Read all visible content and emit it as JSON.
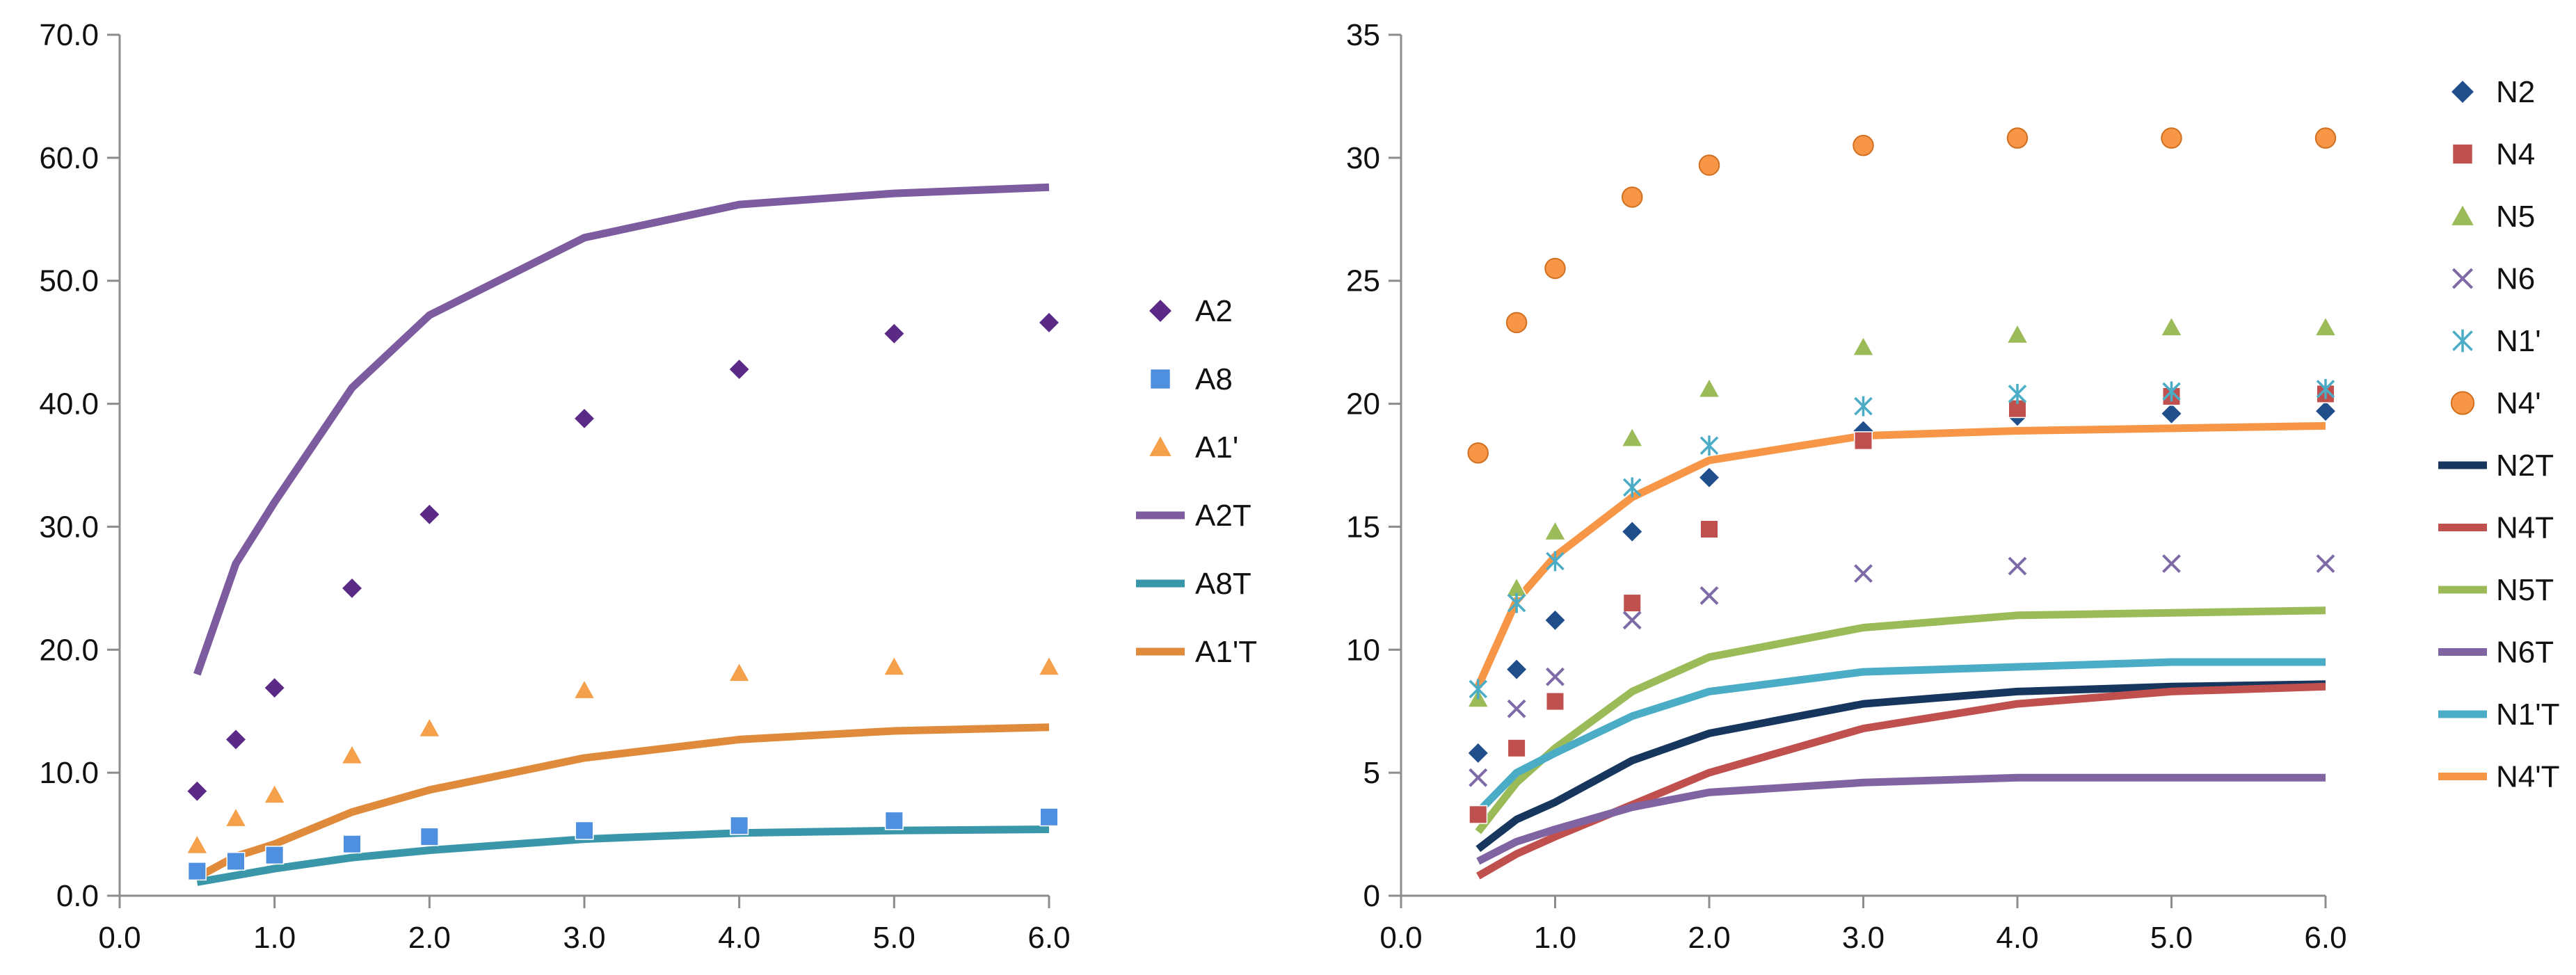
{
  "chart_data": [
    {
      "type": "scatter",
      "xlim": [
        0,
        6
      ],
      "ylim": [
        0,
        70
      ],
      "x_ticks": [
        "0.0",
        "1.0",
        "2.0",
        "3.0",
        "4.0",
        "5.0",
        "6.0"
      ],
      "y_ticks": [
        "0.0",
        "10.0",
        "20.0",
        "30.0",
        "40.0",
        "50.0",
        "60.0",
        "70.0"
      ],
      "grid": false,
      "legend_position": "right",
      "series": [
        {
          "name": "A2",
          "kind": "marker",
          "marker": "diamond",
          "color": "#5b2a86",
          "x": [
            0.5,
            0.75,
            1.0,
            1.5,
            2.0,
            3.0,
            4.0,
            5.0,
            6.0
          ],
          "y": [
            8.5,
            12.7,
            16.9,
            25.0,
            31.0,
            38.8,
            42.8,
            45.7,
            46.6
          ]
        },
        {
          "name": "A8",
          "kind": "marker",
          "marker": "square",
          "color": "#4f8fe0",
          "x": [
            0.5,
            0.75,
            1.0,
            1.5,
            2.0,
            3.0,
            4.0,
            5.0,
            6.0
          ],
          "y": [
            2.0,
            2.8,
            3.3,
            4.2,
            4.8,
            5.3,
            5.7,
            6.1,
            6.4
          ]
        },
        {
          "name": "A1'",
          "kind": "marker",
          "marker": "triangle",
          "color": "#f5a04a",
          "x": [
            0.5,
            0.75,
            1.0,
            1.5,
            2.0,
            3.0,
            4.0,
            5.0,
            6.0
          ],
          "y": [
            4.1,
            6.3,
            8.2,
            11.4,
            13.6,
            16.7,
            18.1,
            18.6,
            18.6
          ]
        },
        {
          "name": "A2T",
          "kind": "line",
          "color": "#7c5b9e",
          "x": [
            0.5,
            0.75,
            1.0,
            1.5,
            2.0,
            3.0,
            4.0,
            5.0,
            6.0
          ],
          "y": [
            18.0,
            27.0,
            32.0,
            41.3,
            47.2,
            53.5,
            56.2,
            57.1,
            57.6
          ]
        },
        {
          "name": "A8T",
          "kind": "line",
          "color": "#3a97a9",
          "x": [
            0.5,
            1.0,
            1.5,
            2.0,
            3.0,
            4.0,
            5.0,
            6.0
          ],
          "y": [
            1.1,
            2.2,
            3.1,
            3.7,
            4.6,
            5.1,
            5.3,
            5.4
          ]
        },
        {
          "name": "A1'T",
          "kind": "line",
          "color": "#e08a3c",
          "x": [
            0.5,
            0.75,
            1.0,
            1.5,
            2.0,
            3.0,
            4.0,
            5.0,
            6.0
          ],
          "y": [
            1.5,
            3.2,
            4.2,
            6.8,
            8.6,
            11.2,
            12.7,
            13.4,
            13.7
          ]
        }
      ]
    },
    {
      "type": "scatter",
      "xlim": [
        0,
        6
      ],
      "ylim": [
        0,
        35
      ],
      "x_ticks": [
        "0.0",
        "1.0",
        "2.0",
        "3.0",
        "4.0",
        "5.0",
        "6.0"
      ],
      "y_ticks": [
        "0",
        "5",
        "10",
        "15",
        "20",
        "25",
        "30",
        "35"
      ],
      "grid": false,
      "legend_position": "right",
      "series": [
        {
          "name": "N2",
          "kind": "marker",
          "marker": "diamond",
          "color": "#1f4e8a",
          "x": [
            0.5,
            0.75,
            1.0,
            1.5,
            2.0,
            3.0,
            4.0,
            5.0,
            6.0
          ],
          "y": [
            5.8,
            9.2,
            11.2,
            14.8,
            17.0,
            18.9,
            19.5,
            19.6,
            19.7
          ]
        },
        {
          "name": "N4",
          "kind": "marker",
          "marker": "square",
          "color": "#c0504d",
          "x": [
            0.5,
            0.75,
            1.0,
            1.5,
            2.0,
            3.0,
            4.0,
            5.0,
            6.0
          ],
          "y": [
            3.3,
            6.0,
            7.9,
            11.9,
            14.9,
            18.5,
            19.8,
            20.3,
            20.4
          ]
        },
        {
          "name": "N5",
          "kind": "marker",
          "marker": "triangle",
          "color": "#9bbb59",
          "x": [
            0.5,
            0.75,
            1.0,
            1.5,
            2.0,
            3.0,
            4.0,
            5.0,
            6.0
          ],
          "y": [
            8.0,
            12.5,
            14.8,
            18.6,
            20.6,
            22.3,
            22.8,
            23.1,
            23.1
          ]
        },
        {
          "name": "N6",
          "kind": "marker",
          "marker": "x",
          "color": "#7e6aa6",
          "x": [
            0.5,
            0.75,
            1.0,
            1.5,
            2.0,
            3.0,
            4.0,
            5.0,
            6.0
          ],
          "y": [
            4.8,
            7.6,
            8.9,
            11.2,
            12.2,
            13.1,
            13.4,
            13.5,
            13.5
          ]
        },
        {
          "name": "N1'",
          "kind": "marker",
          "marker": "asterisk",
          "color": "#4bacc6",
          "x": [
            0.5,
            0.75,
            1.0,
            1.5,
            2.0,
            3.0,
            4.0,
            5.0,
            6.0
          ],
          "y": [
            8.4,
            11.9,
            13.6,
            16.6,
            18.3,
            19.9,
            20.4,
            20.5,
            20.6
          ]
        },
        {
          "name": "N4'",
          "kind": "marker",
          "marker": "circle",
          "color": "#f79646",
          "x": [
            0.5,
            0.75,
            1.0,
            1.5,
            2.0,
            3.0,
            4.0,
            5.0,
            6.0
          ],
          "y": [
            18.0,
            23.3,
            25.5,
            28.4,
            29.7,
            30.5,
            30.8,
            30.8,
            30.8
          ]
        },
        {
          "name": "N2T",
          "kind": "line",
          "color": "#17365d",
          "x": [
            0.5,
            0.75,
            1.0,
            1.5,
            2.0,
            3.0,
            4.0,
            5.0,
            6.0
          ],
          "y": [
            1.9,
            3.1,
            3.8,
            5.5,
            6.6,
            7.8,
            8.3,
            8.5,
            8.6
          ]
        },
        {
          "name": "N4T",
          "kind": "line",
          "color": "#c0504d",
          "x": [
            0.5,
            0.75,
            1.0,
            1.5,
            2.0,
            3.0,
            4.0,
            5.0,
            6.0
          ],
          "y": [
            0.8,
            1.7,
            2.4,
            3.7,
            5.0,
            6.8,
            7.8,
            8.3,
            8.5
          ]
        },
        {
          "name": "N5T",
          "kind": "line",
          "color": "#9bbb59",
          "x": [
            0.5,
            0.75,
            1.0,
            1.5,
            2.0,
            3.0,
            4.0,
            5.0,
            6.0
          ],
          "y": [
            2.6,
            4.6,
            6.0,
            8.3,
            9.7,
            10.9,
            11.4,
            11.5,
            11.6
          ]
        },
        {
          "name": "N6T",
          "kind": "line",
          "color": "#8064a2",
          "x": [
            0.5,
            0.75,
            1.0,
            1.5,
            2.0,
            3.0,
            4.0,
            5.0,
            6.0
          ],
          "y": [
            1.4,
            2.2,
            2.7,
            3.6,
            4.2,
            4.6,
            4.8,
            4.8,
            4.8
          ]
        },
        {
          "name": "N1'T",
          "kind": "line",
          "color": "#4bacc6",
          "x": [
            0.5,
            0.75,
            1.0,
            1.5,
            2.0,
            3.0,
            4.0,
            5.0,
            6.0
          ],
          "y": [
            3.4,
            5.0,
            5.8,
            7.3,
            8.3,
            9.1,
            9.3,
            9.5,
            9.5
          ]
        },
        {
          "name": "N4'T",
          "kind": "line",
          "color": "#f79646",
          "x": [
            0.5,
            0.75,
            1.0,
            1.5,
            2.0,
            3.0,
            4.0,
            5.0,
            6.0
          ],
          "y": [
            8.5,
            12.0,
            13.8,
            16.2,
            17.7,
            18.7,
            18.9,
            19.0,
            19.1
          ]
        }
      ]
    }
  ]
}
